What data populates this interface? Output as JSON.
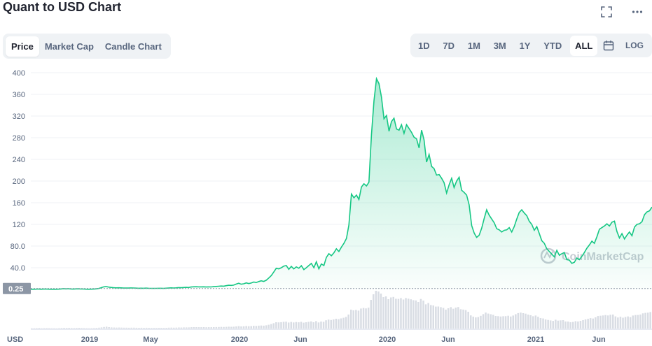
{
  "title": "Quant to USD Chart",
  "header_icons": [
    "fullscreen-icon",
    "more-icon"
  ],
  "view_tabs": [
    {
      "label": "Price",
      "active": true
    },
    {
      "label": "Market Cap",
      "active": false
    },
    {
      "label": "Candle Chart",
      "active": false
    }
  ],
  "ranges": [
    {
      "label": "1D",
      "active": false
    },
    {
      "label": "7D",
      "active": false
    },
    {
      "label": "1M",
      "active": false
    },
    {
      "label": "3M",
      "active": false
    },
    {
      "label": "1Y",
      "active": false
    },
    {
      "label": "YTD",
      "active": false
    },
    {
      "label": "ALL",
      "active": true
    }
  ],
  "log_label": "LOG",
  "calendar_icon": "calendar-icon",
  "watermark": "CoinMarketCap",
  "colors": {
    "line": "#16c784",
    "accent": "#16c784",
    "current_badge": "#8c96a5"
  },
  "chart_data": {
    "type": "area",
    "x_tick_labels": [
      "2019",
      "May",
      "2020",
      "Jun",
      "2020",
      "Jun",
      "2021",
      "Jun"
    ],
    "y_tick_labels": [
      "40.0",
      "80.0",
      "120",
      "160",
      "200",
      "240",
      "280",
      "320",
      "360",
      "400"
    ],
    "y_ticks": [
      40,
      80,
      120,
      160,
      200,
      240,
      280,
      320,
      360,
      400
    ],
    "ylim": [
      0,
      400
    ],
    "y_unit_label": "USD",
    "current_value_label": "0.25",
    "current_value": 0.25,
    "grid": true,
    "series": [
      {
        "values": [
          0.3,
          0.3,
          0.4,
          0.6,
          0.3,
          0.5,
          0.7,
          0.4,
          0.3,
          0.3,
          0.2,
          0.4,
          0.8,
          1.2,
          0.9,
          1.1,
          0.6,
          0.5,
          0.9,
          1.0,
          0.7,
          0.6,
          0.4,
          0.3,
          0.4,
          0.5,
          0.9,
          1.5,
          2.8,
          4.5,
          5.3,
          4.2,
          3.6,
          3.1,
          2.9,
          3.0,
          2.8,
          2.5,
          2.6,
          2.4,
          2.7,
          2.6,
          2.3,
          2.1,
          2.2,
          2.0,
          2.3,
          2.1,
          1.9,
          1.8,
          1.9,
          2.1,
          2.0,
          1.8,
          2.2,
          2.6,
          2.8,
          2.6,
          2.9,
          3.3,
          3.1,
          3.5,
          3.7,
          3.5,
          4.4,
          4.8,
          4.9,
          4.6,
          4.7,
          4.8,
          4.4,
          4.6,
          4.5,
          5.0,
          5.4,
          5.8,
          6.2,
          6.0,
          6.9,
          7.6,
          7.4,
          7.9,
          9.8,
          11.3,
          9.6,
          10.3,
          12.0,
          10.7,
          11.7,
          13.5,
          12.6,
          14.5,
          15.9,
          14.7,
          16.9,
          21.0,
          25.5,
          32.0,
          39.0,
          38.0,
          40.0,
          43.0,
          44.0,
          37.0,
          42.5,
          37.8,
          41.5,
          39.0,
          43.8,
          36.5,
          40.0,
          44.0,
          48.0,
          40.0,
          51.0,
          38.0,
          47.0,
          44.0,
          59.0,
          66.0,
          62.0,
          67.5,
          75.0,
          70.0,
          78.0,
          85.0,
          94.0,
          119.0,
          176.0,
          169.0,
          174.0,
          166.0,
          189.0,
          195.0,
          191.0,
          198.0,
          285.0,
          348.0,
          389.0,
          380.0,
          355.0,
          315.0,
          321.0,
          292.0,
          310.0,
          316.0,
          296.0,
          294.0,
          304.0,
          288.0,
          304.0,
          297.0,
          290.0,
          281.0,
          278.0,
          261.0,
          294.0,
          276.0,
          235.0,
          249.0,
          227.0,
          223.0,
          211.0,
          212.0,
          205.0,
          197.0,
          178.0,
          193.0,
          205.0,
          188.0,
          200.0,
          207.0,
          183.0,
          179.0,
          174.0,
          156.0,
          118.0,
          104.0,
          96.0,
          100.0,
          113.0,
          131.0,
          147.0,
          137.0,
          130.0,
          123.0,
          112.0,
          110.0,
          106.0,
          109.0,
          110.0,
          114.0,
          106.0,
          116.0,
          130.0,
          142.0,
          147.0,
          141.0,
          136.0,
          126.0,
          120.0,
          109.0,
          116.0,
          103.0,
          90.0,
          85.0,
          75.0,
          70.0,
          65.0,
          60.0,
          72.0,
          63.0,
          66.0,
          68.0,
          55.0,
          54.0,
          48.0,
          50.0,
          58.0,
          55.0,
          61.0,
          68.0,
          76.0,
          82.0,
          89.0,
          85.0,
          97.0,
          111.0,
          114.0,
          117.0,
          121.0,
          117.0,
          124.0,
          126.0,
          107.0,
          95.0,
          103.0,
          93.0,
          100.0,
          106.0,
          99.0,
          115.0,
          120.0,
          121.0,
          125.0,
          138.0,
          143.0,
          145.0,
          152.0
        ]
      }
    ],
    "volume": [
      0.5,
      0.5,
      0.6,
      0.8,
      0.5,
      0.6,
      0.7,
      0.6,
      0.5,
      0.5,
      0.4,
      0.6,
      0.8,
      1.0,
      0.9,
      1.0,
      0.8,
      0.7,
      0.9,
      1.0,
      0.8,
      0.7,
      0.6,
      0.5,
      0.6,
      0.7,
      0.9,
      1.2,
      1.6,
      2.2,
      2.6,
      2.0,
      1.6,
      1.4,
      1.3,
      1.4,
      1.3,
      1.2,
      1.2,
      1.1,
      1.2,
      1.2,
      1.1,
      1.0,
      1.1,
      1.0,
      1.1,
      1.0,
      0.9,
      0.9,
      0.9,
      1.0,
      1.0,
      0.9,
      1.0,
      1.2,
      1.3,
      1.2,
      1.3,
      1.5,
      1.4,
      1.6,
      1.6,
      1.6,
      1.9,
      2.0,
      2.0,
      1.9,
      1.9,
      2.0,
      1.8,
      1.9,
      1.9,
      2.0,
      2.1,
      2.2,
      2.3,
      2.2,
      2.4,
      2.6,
      2.5,
      2.6,
      3.0,
      3.4,
      3.0,
      3.2,
      3.6,
      3.3,
      3.5,
      3.9,
      3.7,
      4.1,
      4.3,
      4.1,
      4.6,
      5.4,
      6.4,
      7.6,
      9.0,
      8.8,
      9.1,
      9.6,
      9.8,
      8.6,
      9.4,
      8.7,
      9.3,
      8.9,
      9.6,
      8.4,
      9.0,
      9.6,
      10.2,
      9.0,
      10.6,
      8.7,
      10.0,
      9.6,
      11.8,
      12.8,
      12.2,
      13.0,
      14.0,
      13.4,
      14.5,
      15.4,
      16.6,
      20.0,
      27.0,
      26.0,
      26.6,
      25.6,
      28.6,
      29.4,
      28.8,
      29.8,
      41.0,
      49.0,
      54.0,
      53.0,
      50.0,
      45.0,
      46.0,
      42.0,
      44.5,
      45.2,
      42.6,
      42.4,
      43.6,
      41.5,
      43.6,
      42.7,
      41.8,
      40.6,
      40.2,
      38.0,
      42.3,
      40.0,
      34.6,
      36.5,
      33.6,
      33.0,
      31.4,
      31.5,
      30.6,
      29.5,
      27.0,
      29.0,
      30.6,
      28.3,
      29.9,
      30.8,
      27.6,
      27.1,
      26.4,
      24.0,
      18.8,
      17.0,
      15.9,
      16.4,
      18.2,
      20.6,
      22.8,
      21.4,
      20.5,
      19.6,
      18.0,
      17.7,
      17.2,
      17.6,
      17.7,
      18.3,
      17.2,
      18.6,
      20.5,
      22.1,
      22.8,
      22.0,
      21.3,
      19.9,
      19.1,
      17.6,
      18.6,
      16.8,
      15.0,
      14.4,
      13.0,
      12.3,
      11.6,
      10.9,
      12.6,
      11.3,
      11.7,
      12.0,
      10.1,
      10.0,
      9.1,
      9.4,
      10.5,
      10.1,
      11.0,
      12.0,
      13.1,
      13.9,
      14.9,
      14.3,
      16.0,
      17.9,
      18.3,
      18.7,
      19.3,
      18.7,
      19.7,
      20.0,
      17.4,
      15.8,
      16.9,
      15.5,
      16.5,
      17.3,
      16.3,
      18.6,
      19.3,
      19.4,
      20.0,
      21.7,
      22.4,
      22.7,
      23.6
    ]
  }
}
